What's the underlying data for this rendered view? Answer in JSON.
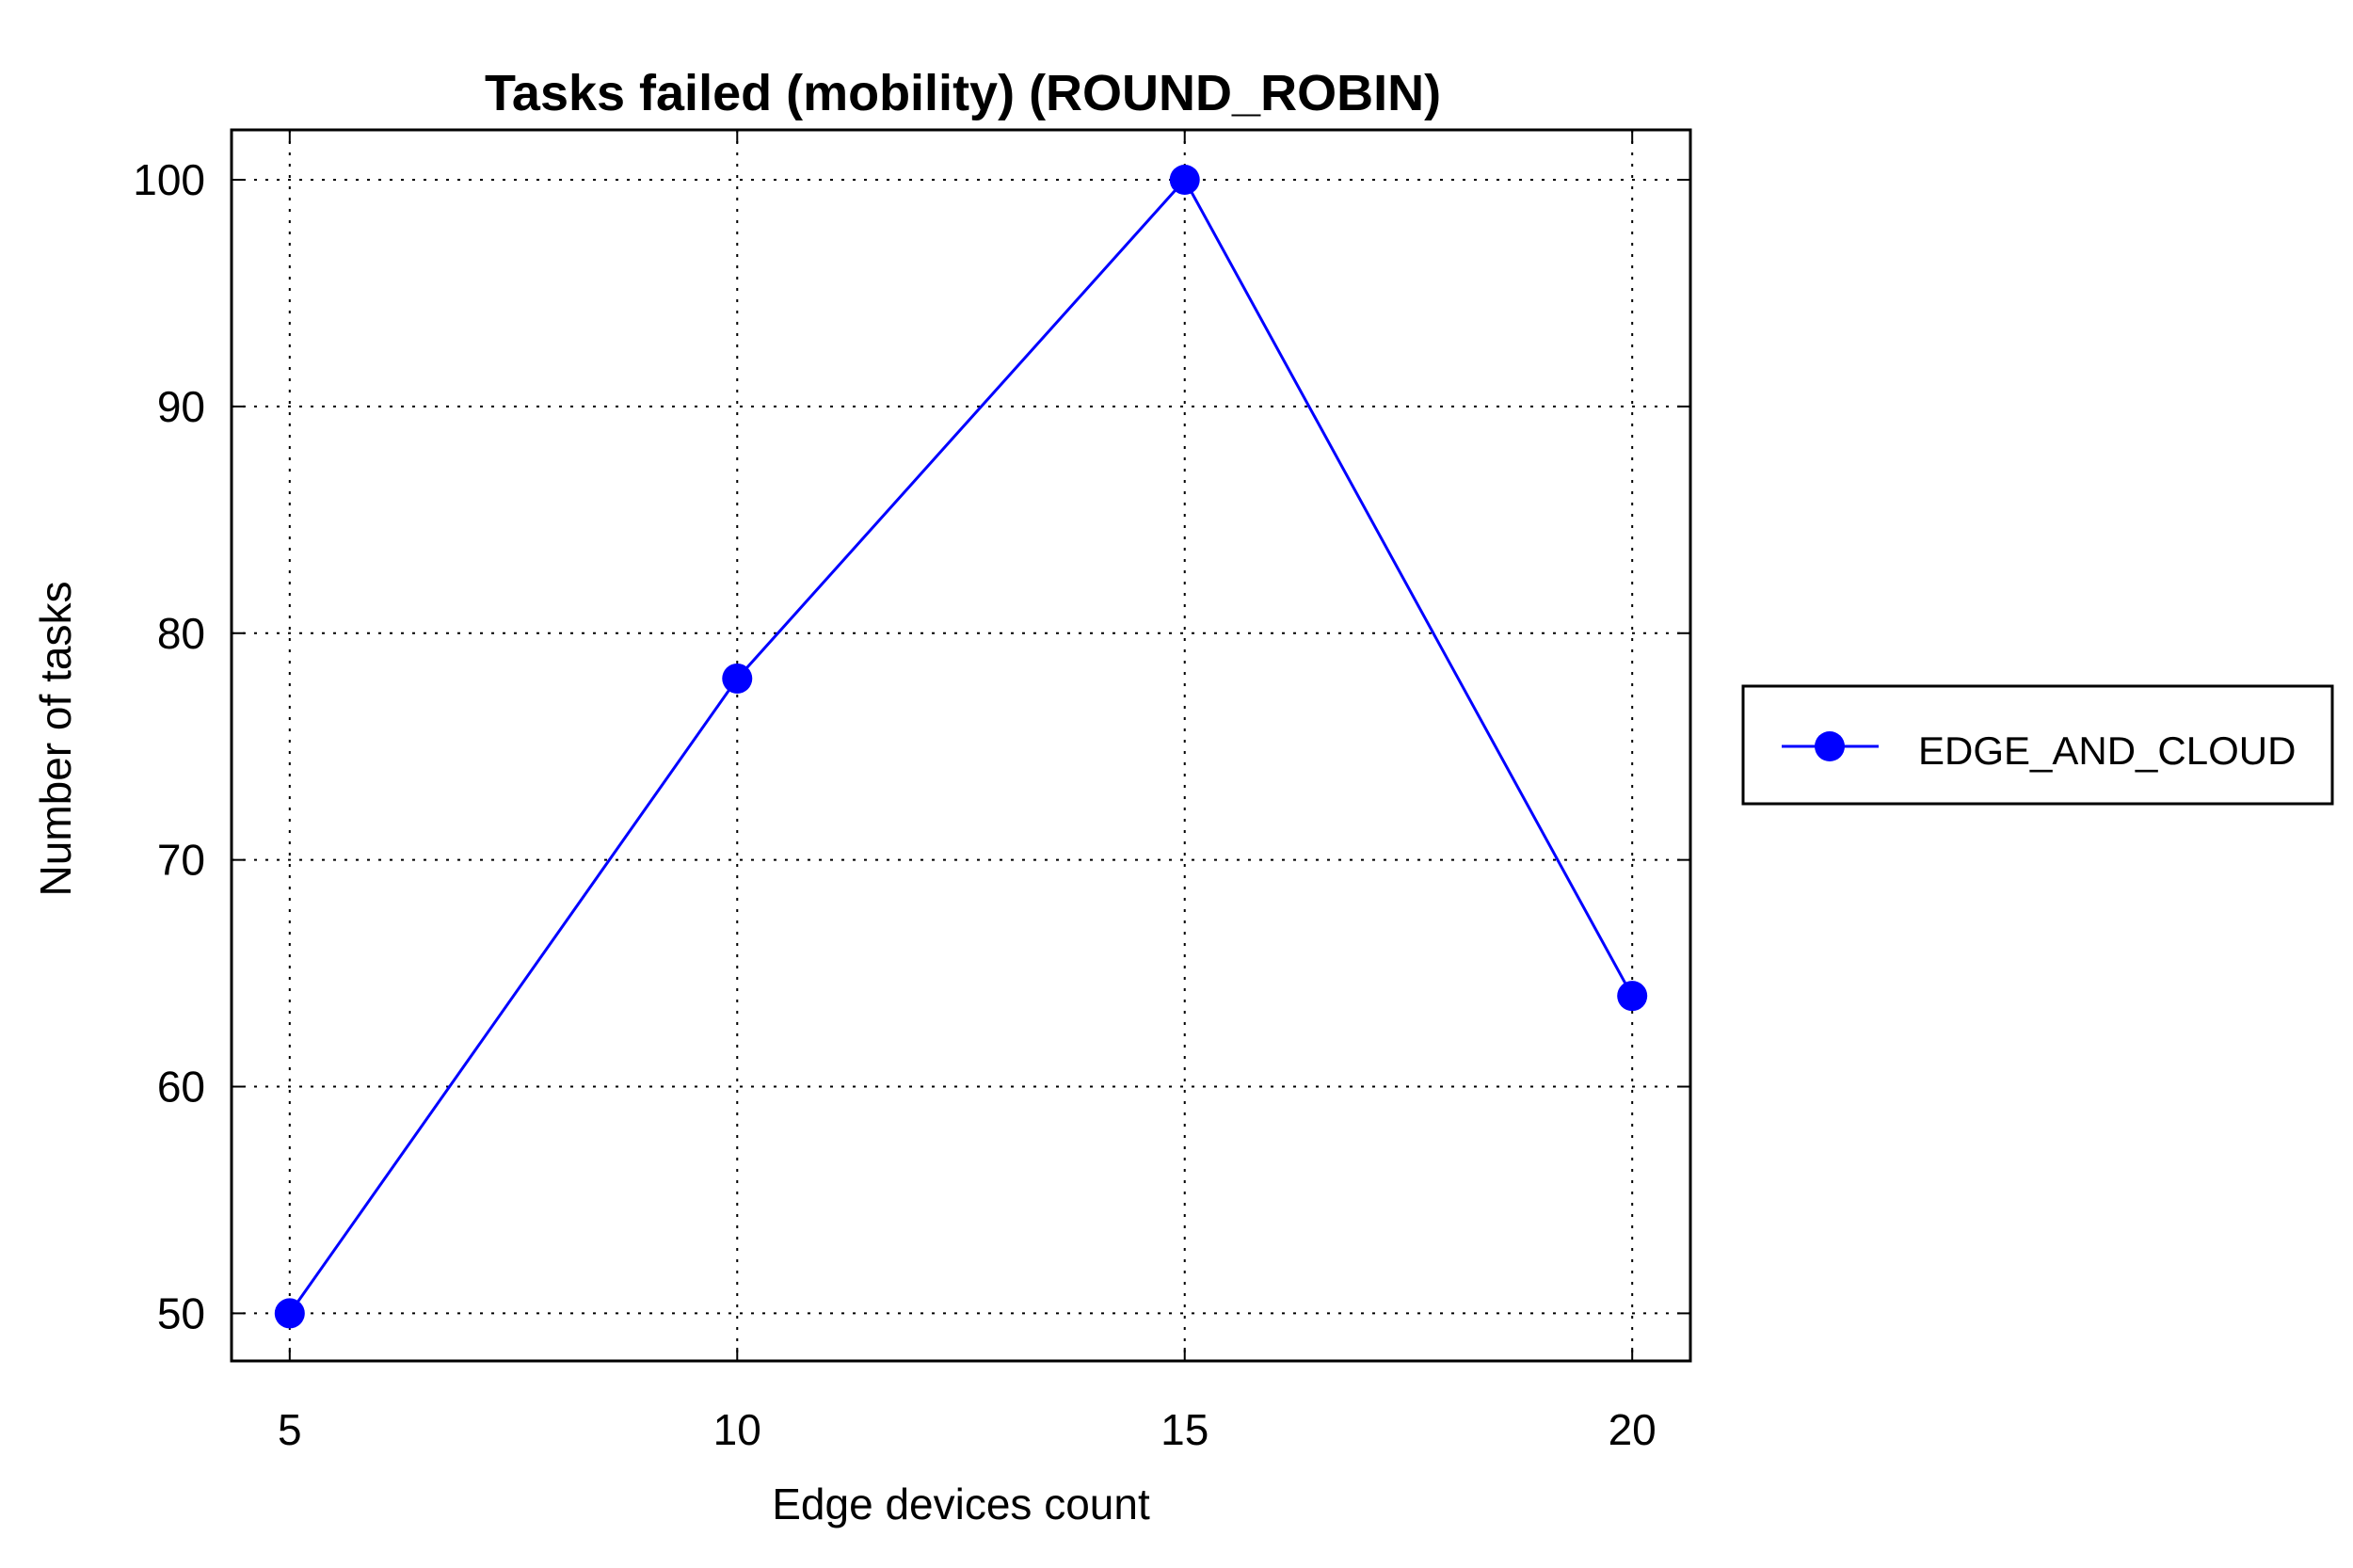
{
  "chart_data": {
    "type": "line",
    "title": "Tasks failed (mobility) (ROUND_ROBIN)",
    "xlabel": "Edge devices count",
    "ylabel": "Number of tasks",
    "x": [
      5,
      10,
      15,
      20
    ],
    "x_tick_labels": [
      "5",
      "10",
      "15",
      "20"
    ],
    "y_ticks": [
      50,
      60,
      70,
      80,
      90,
      100
    ],
    "y_tick_labels": [
      "50",
      "60",
      "70",
      "80",
      "90",
      "100"
    ],
    "series": [
      {
        "name": "EDGE_AND_CLOUD",
        "values": [
          50,
          78,
          100,
          64
        ],
        "color": "#0000ff"
      }
    ],
    "xlim": [
      4.35,
      20.65
    ],
    "ylim": [
      47.9,
      102.2
    ],
    "grid": true,
    "legend_position": "right-outside"
  }
}
